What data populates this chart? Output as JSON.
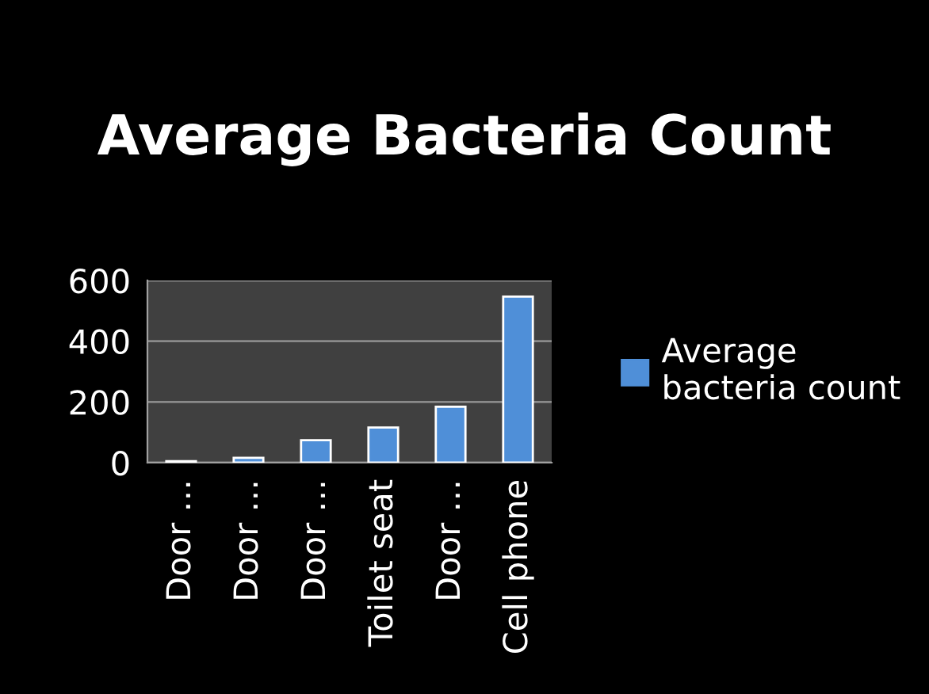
{
  "chart_data": {
    "type": "bar",
    "title": "Average Bacteria Count",
    "categories": [
      "Door …",
      "Door …",
      "Door …",
      "Toilet seat",
      "Door …",
      "Cell phone"
    ],
    "series": [
      {
        "name": "Average bacteria count",
        "color": "#4f8fd8",
        "values": [
          5,
          16,
          74,
          116,
          184,
          547
        ]
      }
    ],
    "ylim": [
      0,
      600
    ],
    "yticks": [
      0,
      200,
      400,
      600
    ],
    "grid": "y",
    "legend": "right"
  }
}
